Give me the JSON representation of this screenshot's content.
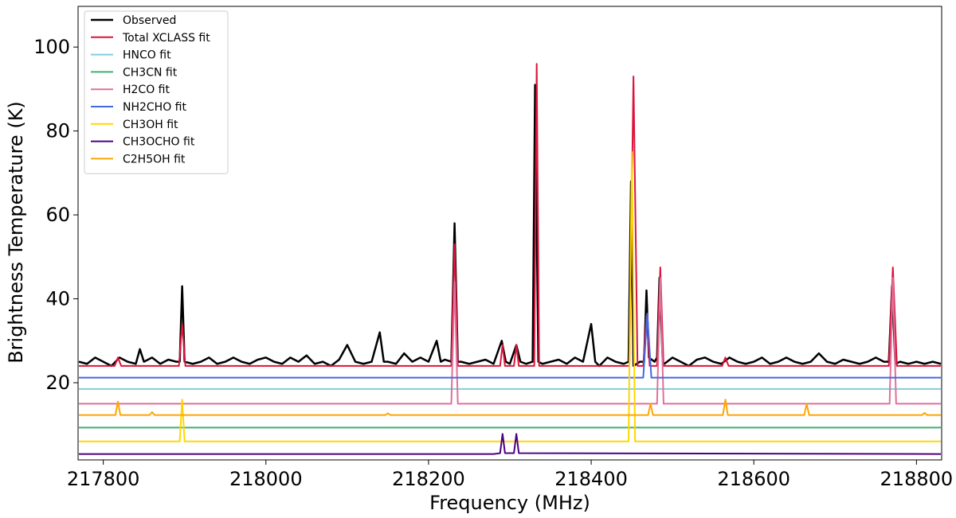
{
  "chart_data": {
    "type": "line",
    "xlabel": "Frequency (MHz)",
    "ylabel": "Brightness Temperature (K)",
    "xlim": [
      217769,
      218831
    ],
    "ylim": [
      1.6,
      109.7
    ],
    "xticks": [
      217800,
      218000,
      218200,
      218400,
      218600,
      218800
    ],
    "yticks": [
      20,
      40,
      60,
      80,
      100
    ],
    "legend": "upper left",
    "series": [
      {
        "name": "Observed",
        "color": "#000000",
        "x": [
          217770,
          217780,
          217790,
          217800,
          217810,
          217820,
          217830,
          217840,
          217845,
          217850,
          217860,
          217870,
          217880,
          217890,
          217894,
          217897,
          217900,
          217910,
          217920,
          217930,
          217940,
          217950,
          217960,
          217970,
          217980,
          217990,
          218000,
          218010,
          218020,
          218030,
          218040,
          218050,
          218060,
          218070,
          218080,
          218090,
          218100,
          218110,
          218120,
          218130,
          218140,
          218145,
          218150,
          218160,
          218170,
          218180,
          218190,
          218200,
          218210,
          218215,
          218220,
          218228,
          218232,
          218236,
          218240,
          218250,
          218260,
          218270,
          218280,
          218290,
          218295,
          218300,
          218308,
          218313,
          218320,
          218328,
          218331,
          218335,
          218340,
          218350,
          218360,
          218370,
          218380,
          218390,
          218400,
          218405,
          218410,
          218420,
          218430,
          218440,
          218446,
          218449,
          218452,
          218460,
          218465,
          218468,
          218471,
          218478,
          218481,
          218484,
          218488,
          218490,
          218500,
          218510,
          218520,
          218530,
          218540,
          218550,
          218560,
          218570,
          218580,
          218590,
          218600,
          218610,
          218620,
          218630,
          218640,
          218650,
          218660,
          218670,
          218680,
          218690,
          218700,
          218710,
          218720,
          218730,
          218740,
          218750,
          218760,
          218766,
          218770,
          218774,
          218780,
          218790,
          218800,
          218810,
          218820,
          218830
        ],
        "values": [
          25,
          24.5,
          26,
          25,
          24,
          26,
          25,
          24.5,
          28,
          25,
          26,
          24.5,
          25.5,
          25,
          25,
          43,
          25,
          24.5,
          25,
          26,
          24.5,
          25,
          26,
          25,
          24.5,
          25.5,
          26,
          25,
          24.5,
          26,
          25,
          26.5,
          24.5,
          25,
          24,
          25.5,
          29,
          25,
          24.5,
          25,
          32,
          25,
          25,
          24.5,
          27,
          25,
          26,
          25,
          30,
          25,
          25.5,
          25,
          58,
          25,
          25,
          24.5,
          25,
          25.5,
          24.5,
          30,
          25,
          24.5,
          29,
          25,
          24.5,
          25,
          91,
          25,
          24.5,
          25,
          25.5,
          24.5,
          26,
          25,
          34,
          25,
          24,
          26,
          25,
          24.5,
          25,
          68,
          24,
          25,
          25,
          42,
          26,
          25,
          26,
          45,
          25,
          24.5,
          26,
          25,
          24,
          25.5,
          26,
          25,
          24.5,
          26,
          25,
          24.5,
          25,
          26,
          24.5,
          25,
          26,
          25,
          24.5,
          25,
          27,
          25,
          24.5,
          25.5,
          25,
          24.5,
          25,
          26,
          25,
          25,
          43,
          24.5,
          25,
          24.5,
          25,
          24.5,
          25,
          24.5
        ]
      },
      {
        "name": "Total XCLASS fit",
        "color": "#dc143c",
        "x": [
          217770,
          217814,
          217818,
          217822,
          217893,
          217897,
          217901,
          218228,
          218232,
          218236,
          218288,
          218291,
          218294,
          218305,
          218308,
          218311,
          218330,
          218333,
          218336,
          218447,
          218452,
          218457,
          218464,
          218468,
          218472,
          218481,
          218485,
          218489,
          218561,
          218565,
          218569,
          218766,
          218771,
          218776,
          218830
        ],
        "values": [
          24,
          24,
          26,
          24,
          24,
          34,
          24,
          24,
          53,
          24,
          24,
          29,
          24,
          24,
          29,
          24,
          24,
          96,
          24,
          24,
          93,
          24,
          24,
          36,
          24,
          24,
          47.5,
          24,
          24,
          26,
          24,
          24,
          47.5,
          24,
          24
        ]
      },
      {
        "name": "HNCO fit",
        "color": "#7ecfd8",
        "x": [
          217770,
          218830
        ],
        "values": [
          18.5,
          18.5
        ]
      },
      {
        "name": "CH3CN fit",
        "color": "#3cb371",
        "x": [
          217770,
          218830
        ],
        "values": [
          9.3,
          9.3
        ]
      },
      {
        "name": "H2CO fit",
        "color": "#e0709a",
        "x": [
          217770,
          218228,
          218232,
          218236,
          218481,
          218485,
          218489,
          218767,
          218771,
          218775,
          218830
        ],
        "values": [
          15,
          15,
          44,
          15,
          15,
          45,
          15,
          15,
          45,
          15,
          15
        ]
      },
      {
        "name": "NH2CHO fit",
        "color": "#4169e1",
        "x": [
          217770,
          218464,
          218469,
          218474,
          218830
        ],
        "values": [
          21.2,
          21.2,
          36.5,
          21.2,
          21.2
        ]
      },
      {
        "name": "CH3OH fit",
        "color": "#ffd700",
        "x": [
          217770,
          217894,
          217897,
          217900,
          218446,
          218450,
          218454,
          218830
        ],
        "values": [
          6,
          6,
          16,
          6,
          6,
          75,
          6,
          6
        ]
      },
      {
        "name": "CH3OCHO fit",
        "color": "#4b0082",
        "x": [
          217770,
          218280,
          218288,
          218291,
          218294,
          218305,
          218308,
          218311,
          218830
        ],
        "values": [
          3,
          3,
          3.2,
          7.8,
          3.2,
          3.2,
          7.8,
          3.2,
          3
        ]
      },
      {
        "name": "C2H5OH fit",
        "color": "#ffa500",
        "x": [
          217770,
          217815,
          217818,
          217821,
          217857,
          217860,
          217863,
          218147,
          218150,
          218153,
          218470,
          218473,
          218476,
          218562,
          218565,
          218568,
          218662,
          218665,
          218668,
          218807,
          218810,
          218813,
          218830
        ],
        "values": [
          12.3,
          12.3,
          15.5,
          12.3,
          12.3,
          13,
          12.3,
          12.3,
          12.7,
          12.3,
          12.3,
          15,
          12.3,
          12.3,
          16,
          12.3,
          12.3,
          15,
          12.3,
          12.3,
          12.8,
          12.3,
          12.3
        ]
      }
    ]
  }
}
